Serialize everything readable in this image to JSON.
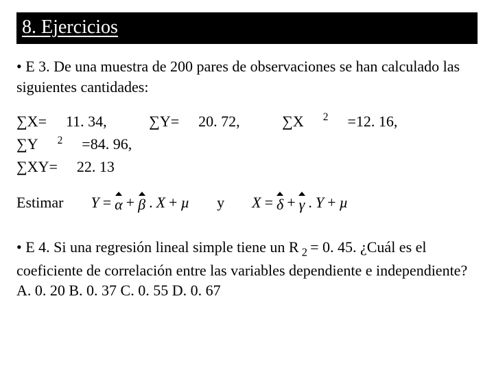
{
  "header": {
    "title": "8. Ejercicios"
  },
  "e3": {
    "bullet": "• E 3. De una muestra de 200 pares de observaciones se han calculado las siguientes cantidades:",
    "sx_label": "∑X=",
    "sx_val": "11. 34,",
    "sy_label": "∑Y=",
    "sy_val": "20. 72,",
    "sx2_label_pre": "∑X",
    "sx2_exp": "2",
    "sx2_eq": "=12. 16,",
    "sy2_label_pre": "∑Y",
    "sy2_exp": "2",
    "sy2_eq": "=84. 96,",
    "sxy_label": "∑XY=",
    "sxy_val": "22. 13"
  },
  "estimate": {
    "label": "Estimar",
    "eq1": {
      "Y": "Y",
      "eq": "=",
      "a": "α",
      "plus1": "+",
      "b": "β",
      "dot": ".",
      "X": "X",
      "plus2": "+",
      "mu": "µ"
    },
    "y_word": "y",
    "eq2": {
      "X": "X",
      "eq": "=",
      "d": "δ",
      "plus1": "+",
      "g": "γ",
      "dot": ".",
      "Y": "Y",
      "plus2": "+",
      "mu": "µ"
    }
  },
  "e4": {
    "text_a": "• E 4. Si una regresión lineal simple tiene un R",
    "sub2": " 2 ",
    "text_b": "= 0. 45. ¿Cuál es el coeficiente de correlación entre las variables dependiente e independiente? A. 0. 20 B. 0. 37 C. 0. 55 D. 0. 67"
  }
}
